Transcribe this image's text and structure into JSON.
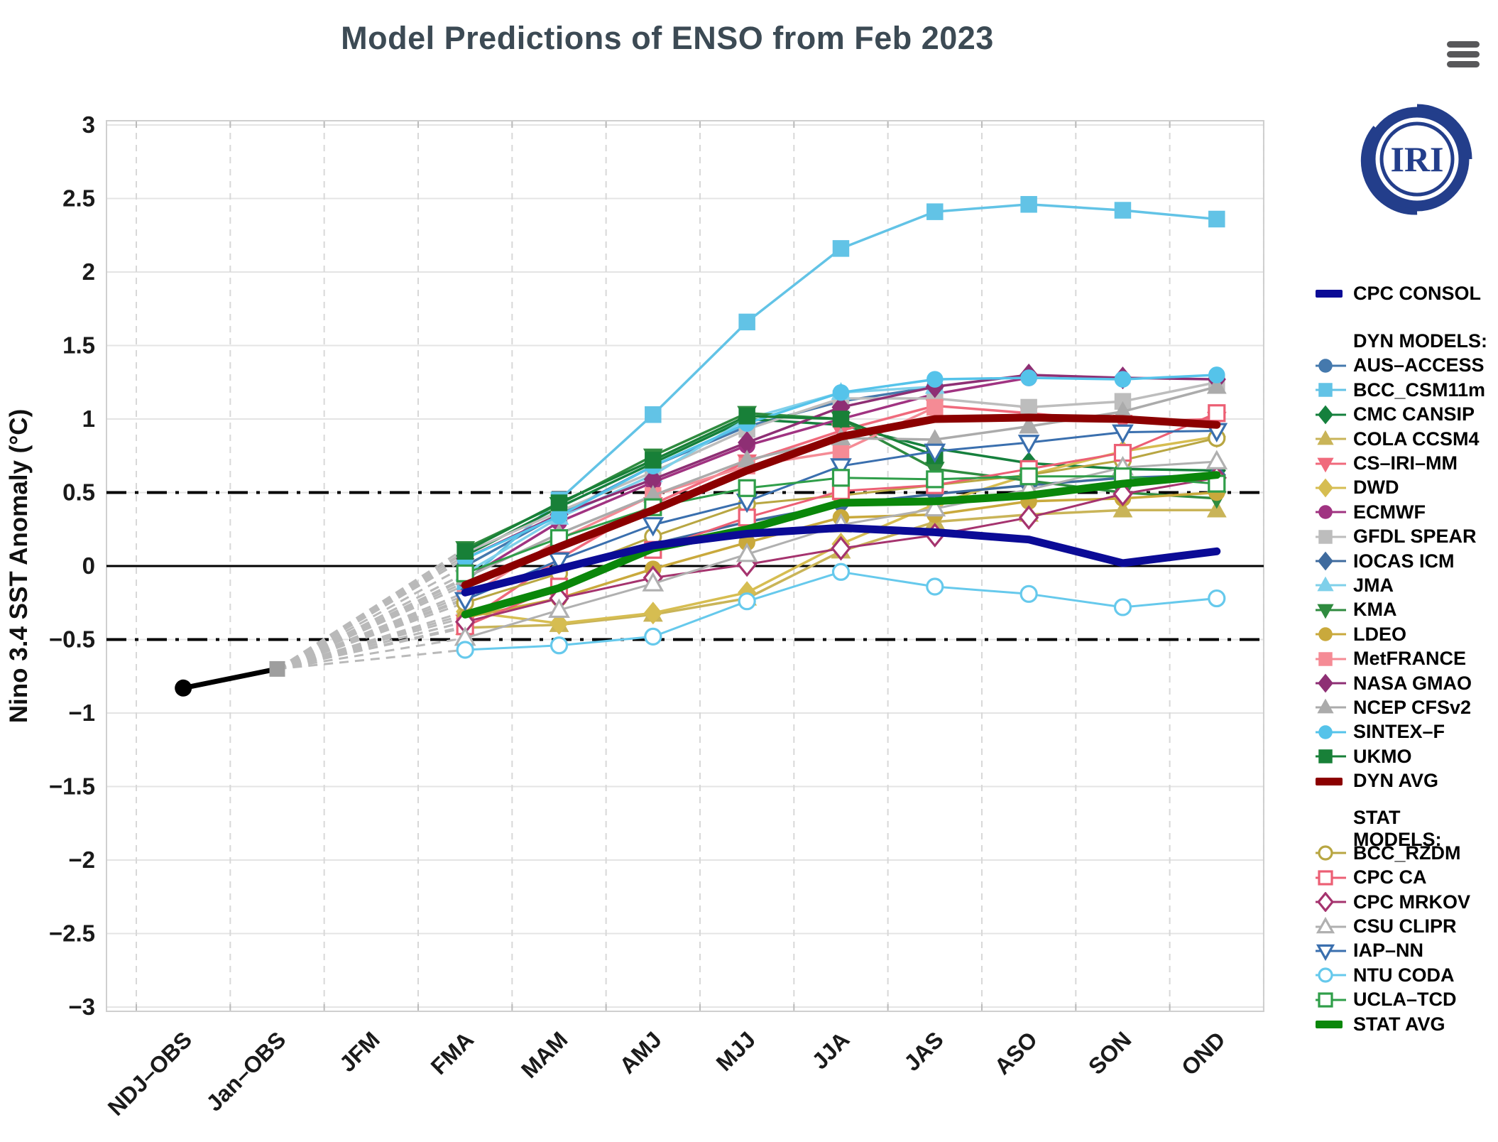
{
  "header": {
    "title": "Model Predictions of ENSO from Feb 2023",
    "menu_tooltip": "Chart menu"
  },
  "logo": {
    "text": "IRI",
    "color": "#233e8b"
  },
  "axes": {
    "y_title": "Nino 3.4 SST Anomaly (°C)",
    "y_ticks": [
      3,
      2.5,
      2,
      1.5,
      1,
      0.5,
      0,
      -0.5,
      -1,
      -1.5,
      -2,
      -2.5,
      -3
    ],
    "y_tick_labels": [
      "3",
      "2.5",
      "2",
      "1.5",
      "1",
      "0.5",
      "0",
      "−0.5",
      "−1",
      "−1.5",
      "−2",
      "−2.5",
      "−3"
    ],
    "x_categories": [
      "NDJ–OBS",
      "Jan–OBS",
      "JFM",
      "FMA",
      "MAM",
      "AMJ",
      "MJJ",
      "JJA",
      "JAS",
      "ASO",
      "SON",
      "OND"
    ],
    "ylim": [
      -3,
      3
    ],
    "grid": true,
    "reference_lines": {
      "zero": 0,
      "upper_dashdot": 0.5,
      "lower_dashdot": -0.5
    }
  },
  "legend": {
    "consol_label": "CPC CONSOL",
    "dyn_heading": "DYN MODELS:",
    "dyn_items": [
      "AUS–ACCESS",
      "BCC_CSM11m",
      "CMC CANSIP",
      "COLA CCSM4",
      "CS–IRI–MM",
      "DWD",
      "ECMWF",
      "GFDL SPEAR",
      "IOCAS ICM",
      "JMA",
      "KMA",
      "LDEO",
      "MetFRANCE",
      "NASA GMAO",
      "NCEP CFSv2",
      "SINTEX–F",
      "UKMO",
      "DYN AVG"
    ],
    "stat_heading": "STAT MODELS:",
    "stat_items": [
      "BCC_RZDM",
      "CPC CA",
      "CPC MRKOV",
      "CSU CLIPR",
      "IAP–NN",
      "NTU CODA",
      "UCLA–TCD",
      "STAT AVG"
    ],
    "position": "right"
  },
  "chart_data": {
    "type": "line",
    "title": "Model Predictions of ENSO from Feb 2023",
    "xlabel": "",
    "ylabel": "Nino 3.4 SST Anomaly (°C)",
    "ylim": [
      -3,
      3
    ],
    "x_all": [
      "NDJ–OBS",
      "Jan–OBS",
      "JFM",
      "FMA",
      "MAM",
      "AMJ",
      "MJJ",
      "JJA",
      "JAS",
      "ASO",
      "SON",
      "OND"
    ],
    "forecast_x": [
      "FMA",
      "MAM",
      "AMJ",
      "MJJ",
      "JJA",
      "JAS",
      "ASO",
      "SON",
      "OND"
    ],
    "observed": {
      "name": "Observed",
      "color": "#000000",
      "x": [
        "NDJ–OBS",
        "Jan–OBS"
      ],
      "values": [
        -0.83,
        -0.7
      ],
      "fan_marker_color": "#9e9e9e"
    },
    "series": [
      {
        "name": "CPC CONSOL",
        "group": "consol",
        "color": "#0b0b96",
        "marker": "none",
        "fill": "solid",
        "lw": 11,
        "values": [
          -0.18,
          -0.02,
          0.14,
          0.22,
          0.26,
          0.23,
          0.18,
          0.02,
          0.1
        ]
      },
      {
        "name": "AUS–ACCESS",
        "group": "dyn",
        "color": "#4579ad",
        "marker": "circle",
        "fill": "solid",
        "lw": 3.5,
        "values": [
          0.0,
          0.35,
          0.68,
          0.95,
          1.12,
          1.22,
          null,
          null,
          null
        ]
      },
      {
        "name": "BCC_CSM11m",
        "group": "dyn",
        "color": "#62c3e6",
        "marker": "square",
        "fill": "solid",
        "lw": 3.5,
        "values": [
          -0.11,
          0.45,
          1.03,
          1.66,
          2.16,
          2.41,
          2.46,
          2.42,
          2.36
        ]
      },
      {
        "name": "CMC CANSIP",
        "group": "dyn",
        "color": "#15803d",
        "marker": "diamond",
        "fill": "solid",
        "lw": 3.5,
        "values": [
          0.07,
          0.4,
          0.7,
          1.0,
          0.96,
          0.8,
          0.7,
          0.66,
          0.65
        ]
      },
      {
        "name": "COLA CCSM4",
        "group": "dyn",
        "color": "#c9b458",
        "marker": "triangle",
        "fill": "solid",
        "lw": 3.5,
        "values": [
          -0.42,
          -0.4,
          -0.33,
          -0.22,
          0.1,
          0.3,
          0.35,
          0.38,
          0.38
        ]
      },
      {
        "name": "CS–IRI–MM",
        "group": "dyn",
        "color": "#f06a7c",
        "marker": "triangle-down",
        "fill": "solid",
        "lw": 3.5,
        "values": [
          -0.38,
          0.05,
          0.42,
          0.71,
          0.92,
          1.09,
          1.04,
          0.98,
          1.0
        ]
      },
      {
        "name": "DWD",
        "group": "dyn",
        "color": "#d6bd51",
        "marker": "diamond",
        "fill": "solid",
        "lw": 3.5,
        "values": [
          -0.31,
          -0.39,
          -0.32,
          -0.18,
          0.15,
          0.42,
          0.62,
          0.78,
          0.88
        ]
      },
      {
        "name": "ECMWF",
        "group": "dyn",
        "color": "#a03381",
        "marker": "circle",
        "fill": "solid",
        "lw": 3.5,
        "values": [
          -0.09,
          0.3,
          0.57,
          0.82,
          1.0,
          1.17,
          1.28,
          null,
          null
        ]
      },
      {
        "name": "GFDL SPEAR",
        "group": "dyn",
        "color": "#bdbdbd",
        "marker": "square",
        "fill": "solid",
        "lw": 3.5,
        "values": [
          0.09,
          0.37,
          0.64,
          0.93,
          1.14,
          1.14,
          1.08,
          1.12,
          1.25
        ]
      },
      {
        "name": "IOCAS ICM",
        "group": "dyn",
        "color": "#3f6b9e",
        "marker": "diamond",
        "fill": "solid",
        "lw": 3.5,
        "values": [
          -0.2,
          -0.02,
          0.15,
          0.3,
          0.42,
          0.49,
          0.55,
          0.6,
          0.62
        ]
      },
      {
        "name": "JMA",
        "group": "dyn",
        "color": "#7fd0ea",
        "marker": "triangle",
        "fill": "solid",
        "lw": 3.5,
        "values": [
          -0.05,
          0.33,
          0.62,
          1.0,
          1.18,
          1.22,
          null,
          null,
          null
        ]
      },
      {
        "name": "KMA",
        "group": "dyn",
        "color": "#2f8b3f",
        "marker": "triangle-down",
        "fill": "solid",
        "lw": 3.5,
        "values": [
          0.12,
          0.42,
          0.75,
          1.04,
          1.0,
          0.66,
          0.58,
          0.5,
          0.46
        ]
      },
      {
        "name": "LDEO",
        "group": "dyn",
        "color": "#c9a93c",
        "marker": "circle",
        "fill": "solid",
        "lw": 3.5,
        "values": [
          -0.35,
          -0.22,
          -0.02,
          0.16,
          0.33,
          0.35,
          0.44,
          0.46,
          0.5
        ]
      },
      {
        "name": "MetFRANCE",
        "group": "dyn",
        "color": "#f58b95",
        "marker": "square",
        "fill": "solid",
        "lw": 3.5,
        "values": [
          -0.22,
          0.18,
          0.48,
          0.68,
          0.78,
          1.08,
          null,
          null,
          null
        ]
      },
      {
        "name": "NASA GMAO",
        "group": "dyn",
        "color": "#8e2f74",
        "marker": "diamond",
        "fill": "solid",
        "lw": 3.5,
        "values": [
          0.05,
          0.35,
          0.59,
          0.84,
          1.08,
          1.22,
          1.3,
          1.28,
          1.27
        ]
      },
      {
        "name": "NCEP CFSv2",
        "group": "dyn",
        "color": "#ababab",
        "marker": "triangle",
        "fill": "solid",
        "lw": 3.5,
        "values": [
          -0.08,
          0.22,
          0.48,
          0.72,
          0.87,
          0.86,
          0.95,
          1.05,
          1.22
        ]
      },
      {
        "name": "SINTEX–F",
        "group": "dyn",
        "color": "#55c3ea",
        "marker": "circle",
        "fill": "solid",
        "lw": 3.5,
        "values": [
          0.05,
          0.34,
          0.68,
          0.97,
          1.18,
          1.27,
          1.28,
          1.27,
          1.3
        ]
      },
      {
        "name": "UKMO",
        "group": "dyn",
        "color": "#188038",
        "marker": "square",
        "fill": "solid",
        "lw": 3.5,
        "values": [
          0.1,
          0.43,
          0.72,
          1.02,
          1.0,
          0.75,
          null,
          null,
          null
        ]
      },
      {
        "name": "DYN AVG",
        "group": "dyn-avg",
        "color": "#8b0000",
        "marker": "none",
        "fill": "solid",
        "lw": 11,
        "values": [
          -0.13,
          0.13,
          0.38,
          0.65,
          0.88,
          1.0,
          1.01,
          1.0,
          0.96
        ]
      },
      {
        "name": "BCC_RZDM",
        "group": "stat",
        "color": "#b8a642",
        "marker": "circle",
        "fill": "open",
        "lw": 3,
        "values": [
          -0.25,
          -0.05,
          0.2,
          0.42,
          0.48,
          0.55,
          0.62,
          0.72,
          0.87
        ]
      },
      {
        "name": "CPC CA",
        "group": "stat",
        "color": "#ec5f74",
        "marker": "square",
        "fill": "open",
        "lw": 3,
        "values": [
          -0.41,
          -0.14,
          0.11,
          0.33,
          0.51,
          0.55,
          0.66,
          0.77,
          1.04
        ]
      },
      {
        "name": "CPC MRKOV",
        "group": "stat",
        "color": "#a5336e",
        "marker": "diamond",
        "fill": "open",
        "lw": 3,
        "values": [
          -0.38,
          -0.22,
          -0.08,
          0.01,
          0.12,
          0.21,
          0.33,
          0.49,
          0.6
        ]
      },
      {
        "name": "CSU CLIPR",
        "group": "stat",
        "color": "#b0b0b0",
        "marker": "triangle",
        "fill": "open",
        "lw": 3,
        "values": [
          -0.49,
          -0.3,
          -0.12,
          0.08,
          0.28,
          0.39,
          0.52,
          0.67,
          0.71
        ]
      },
      {
        "name": "IAP–NN",
        "group": "stat",
        "color": "#3a6fae",
        "marker": "triangle-down",
        "fill": "open",
        "lw": 3,
        "values": [
          -0.23,
          0.04,
          0.28,
          0.44,
          0.68,
          0.78,
          0.84,
          0.91,
          0.92
        ]
      },
      {
        "name": "NTU CODA",
        "group": "stat",
        "color": "#66c9ec",
        "marker": "circle",
        "fill": "open",
        "lw": 3,
        "values": [
          -0.57,
          -0.54,
          -0.48,
          -0.24,
          -0.04,
          -0.14,
          -0.19,
          -0.28,
          -0.22
        ]
      },
      {
        "name": "UCLA–TCD",
        "group": "stat",
        "color": "#2f9e49",
        "marker": "square",
        "fill": "open",
        "lw": 3,
        "values": [
          -0.05,
          0.19,
          0.4,
          0.53,
          0.6,
          0.59,
          0.61,
          0.61,
          0.56
        ]
      },
      {
        "name": "STAT AVG",
        "group": "stat-avg",
        "color": "#0a870a",
        "marker": "none",
        "fill": "solid",
        "lw": 11,
        "values": [
          -0.33,
          -0.15,
          0.12,
          0.25,
          0.43,
          0.44,
          0.48,
          0.56,
          0.62
        ]
      }
    ]
  }
}
